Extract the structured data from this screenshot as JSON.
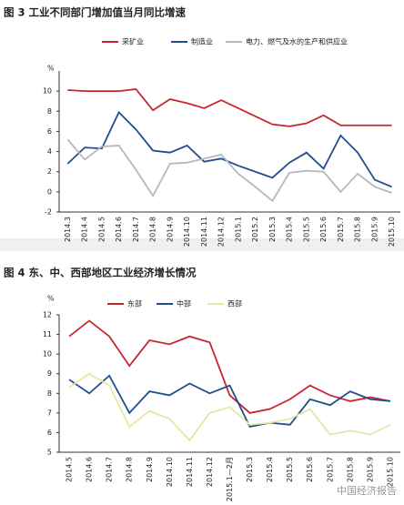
{
  "chart_data": [
    {
      "type": "line",
      "title": "图 3  工业不同部门增加值当月同比增速",
      "y_label": "%",
      "categories": [
        "2014.3",
        "2014.4",
        "2014.5",
        "2014.6",
        "2014.7",
        "2014.8",
        "2014.9",
        "2014.10",
        "2014.11",
        "2014.12",
        "2015.1",
        "2015.2",
        "2015.3",
        "2015.4",
        "2015.5",
        "2015.6",
        "2015.7",
        "2015.8",
        "2015.9",
        "2015.10"
      ],
      "series": [
        {
          "name": "采矿业",
          "color": "#c8262e",
          "values": [
            10.1,
            10.0,
            10.0,
            10.0,
            10.2,
            8.1,
            9.2,
            8.8,
            8.3,
            9.1,
            8.3,
            7.5,
            6.7,
            6.5,
            6.8,
            7.6,
            6.6,
            6.6,
            6.6,
            6.6
          ]
        },
        {
          "name": "制造业",
          "color": "#1f4e8c",
          "values": [
            2.8,
            4.4,
            4.3,
            7.9,
            6.2,
            4.1,
            3.9,
            4.6,
            3.0,
            3.3,
            2.6,
            2.0,
            1.4,
            2.9,
            3.9,
            2.3,
            5.6,
            3.9,
            1.2,
            0.5
          ]
        },
        {
          "name": "电力、燃气及水的生产和供应业",
          "color": "#b4b8bc",
          "values": [
            5.2,
            3.2,
            4.5,
            4.6,
            2.2,
            -0.4,
            2.8,
            2.9,
            3.3,
            3.7,
            1.8,
            0.5,
            -0.9,
            1.9,
            2.1,
            2.0,
            0.0,
            1.8,
            0.5,
            -0.1
          ]
        }
      ],
      "ylim": [
        -2,
        12
      ],
      "yticks": [
        -2,
        0,
        2,
        4,
        6,
        8,
        10
      ],
      "grid": false
    },
    {
      "type": "line",
      "title": "图 4  东、中、西部地区工业经济增长情况",
      "y_label": "%",
      "categories": [
        "2014.5",
        "2014.6",
        "2014.7",
        "2014.8",
        "2014.9",
        "2014.10",
        "2014.11",
        "2014.12",
        "2015.1—2月",
        "2015.3",
        "2015.4",
        "2015.5",
        "2015.6",
        "2015.7",
        "2015.8",
        "2015.9",
        "2015.10"
      ],
      "series": [
        {
          "name": "东部",
          "color": "#c8262e",
          "values": [
            10.9,
            11.7,
            10.9,
            9.4,
            10.7,
            10.5,
            10.9,
            10.6,
            7.9,
            7.0,
            7.2,
            7.7,
            8.4,
            7.9,
            7.6,
            7.8,
            7.6
          ]
        },
        {
          "name": "中部",
          "color": "#1f4e8c",
          "values": [
            8.7,
            8.0,
            8.9,
            7.0,
            8.1,
            7.9,
            8.5,
            8.0,
            8.4,
            6.3,
            6.5,
            6.4,
            7.7,
            7.4,
            8.1,
            7.7,
            7.6
          ]
        },
        {
          "name": "西部",
          "color": "#e3e8a6",
          "values": [
            8.3,
            9.0,
            8.4,
            6.3,
            7.1,
            6.7,
            5.6,
            7.0,
            7.3,
            6.4,
            6.5,
            6.7,
            7.2,
            5.9,
            6.1,
            5.9,
            6.4
          ]
        }
      ],
      "ylim": [
        5,
        12
      ],
      "yticks": [
        5,
        6,
        7,
        8,
        9,
        10,
        11,
        12
      ],
      "grid": false
    }
  ],
  "watermark": "中国经济报告"
}
